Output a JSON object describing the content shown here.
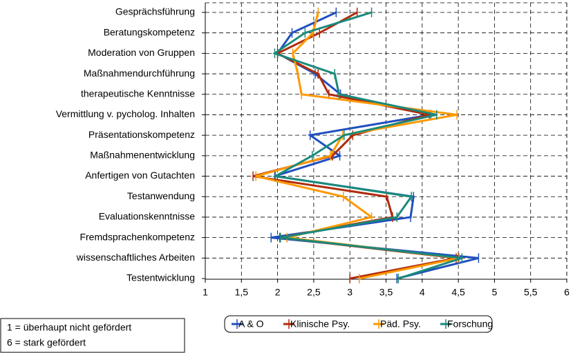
{
  "chart_data": {
    "type": "line",
    "orientation": "horizontal",
    "categories": [
      "Gesprächsführung",
      "Beratungskompetenz",
      "Moderation von Gruppen",
      "Maßnahmendurchführung",
      "therapeutische Kenntnisse",
      "Vermittlung v. pycholog. Inhalten",
      "Präsentationskompetenz",
      "Maßnahmenentwicklung",
      "Anfertigen von Gutachten",
      "Testanwendung",
      "Evaluationskenntnisse",
      "Fremdsprachenkompetenz",
      "wissenschaftliches Arbeiten",
      "Testentwicklung"
    ],
    "series": [
      {
        "name": "A & O",
        "color": "#1f4fbf",
        "values": [
          2.81,
          2.2,
          2.0,
          2.52,
          2.87,
          4.12,
          2.45,
          2.86,
          1.96,
          3.88,
          3.84,
          1.91,
          4.78,
          3.65
        ]
      },
      {
        "name": "Klinische Psy.",
        "color": "#b02a0a",
        "values": [
          3.1,
          2.58,
          2.0,
          2.56,
          2.71,
          4.1,
          3.04,
          2.76,
          1.66,
          3.51,
          3.59,
          2.03,
          4.47,
          3.0
        ]
      },
      {
        "name": "Päd. Psy.",
        "color": "#ff9900",
        "values": [
          2.56,
          2.49,
          2.21,
          2.28,
          2.33,
          4.48,
          2.9,
          2.73,
          1.7,
          2.91,
          3.3,
          2.13,
          4.51,
          3.13
        ]
      },
      {
        "name": "Forschung",
        "color": "#1a8a7a",
        "values": [
          3.3,
          2.38,
          1.96,
          2.79,
          2.85,
          4.2,
          2.92,
          2.48,
          1.97,
          3.85,
          3.65,
          2.04,
          4.55,
          3.67
        ]
      }
    ],
    "xlim": [
      1,
      6
    ],
    "xticks": [
      1,
      {
        "value": 1.5,
        "label": "1,5"
      },
      2,
      {
        "value": 2.5,
        "label": "2,5"
      },
      3,
      {
        "value": 3.5,
        "label": "3,5"
      },
      4,
      {
        "value": 4.5,
        "label": "4,5"
      },
      5,
      {
        "value": 5.5,
        "label": "5,5"
      },
      6
    ],
    "grid": true,
    "legend": "bottom",
    "annotations": [
      "1 = überhaupt nicht gefördert",
      "6 = stark gefördert"
    ]
  }
}
